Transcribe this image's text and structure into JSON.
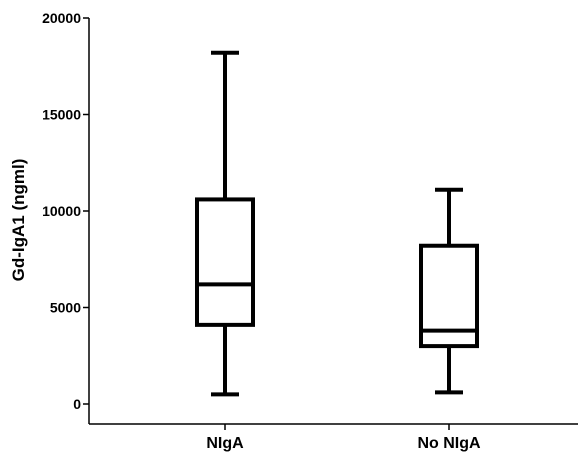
{
  "chart_data": {
    "type": "box",
    "title": "",
    "xlabel": "",
    "ylabel": "Gd-IgA1 (ngml)",
    "ylim": [
      0,
      20000
    ],
    "yticks": [
      0,
      5000,
      10000,
      15000,
      20000
    ],
    "ytick_labels": [
      "0",
      "5000",
      "10000",
      "15000",
      "20000"
    ],
    "grid": false,
    "categories": [
      "NIgA",
      "No NIgA"
    ],
    "boxes": [
      {
        "category": "NIgA",
        "whisker_low": 500,
        "q1": 4100,
        "median": 6200,
        "q3": 10600,
        "whisker_high": 18200
      },
      {
        "category": "No NIgA",
        "whisker_low": 600,
        "q1": 3000,
        "median": 3800,
        "q3": 8200,
        "whisker_high": 11100
      }
    ]
  }
}
